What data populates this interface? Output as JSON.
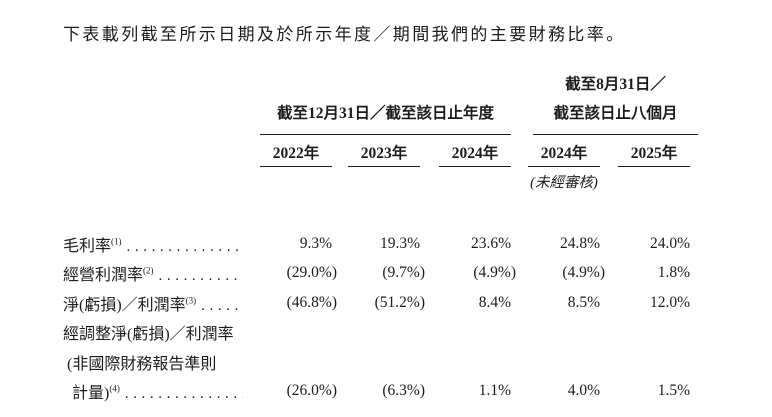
{
  "title": "下表載列截至所示日期及於所示年度／期間我們的主要財務比率。",
  "table": {
    "col_groups": [
      {
        "label": "截至12月31日／截至該日止年度"
      },
      {
        "label_line1": "截至8月31日／",
        "label_line2": "截至該日止八個月"
      }
    ],
    "columns": [
      "2022年",
      "2023年",
      "2024年",
      "2024年",
      "2025年"
    ],
    "unaudited_note": "(未經審核)",
    "rows": [
      {
        "label": "毛利率",
        "footnote": "(1)",
        "values": [
          "9.3%",
          "19.3%",
          "23.6%",
          "24.8%",
          "24.0%"
        ]
      },
      {
        "label": "經營利潤率",
        "footnote": "(2)",
        "values": [
          "(29.0%)",
          "(9.7%)",
          "(4.9%)",
          "(4.9%)",
          "1.8%"
        ]
      },
      {
        "label": "淨(虧損)／利潤率",
        "footnote": "(3)",
        "values": [
          "(46.8%)",
          "(51.2%)",
          "8.4%",
          "8.5%",
          "12.0%"
        ]
      },
      {
        "label_lines": [
          "經調整淨(虧損)／利潤率",
          "(非國際財務報告準則",
          "計量)"
        ],
        "footnote": "(4)",
        "values": [
          "(26.0%)",
          "(6.3%)",
          "1.1%",
          "4.0%",
          "1.5%"
        ]
      }
    ]
  }
}
